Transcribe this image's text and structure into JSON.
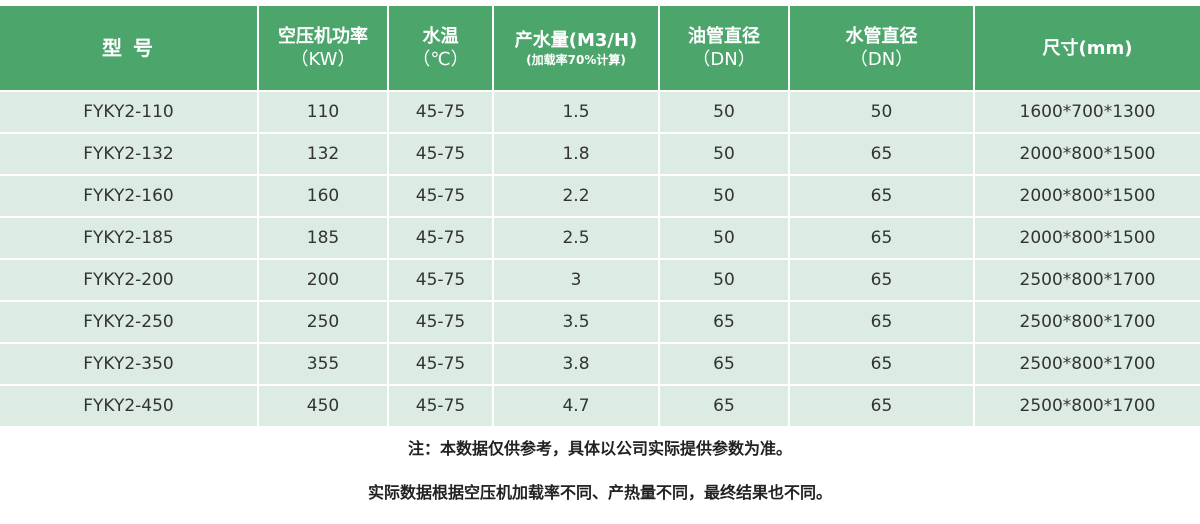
{
  "header": {
    "model": "型 号",
    "power": {
      "title": "空压机功率",
      "unit": "（KW）"
    },
    "water_temp": {
      "title": "水温",
      "unit": "（℃）"
    },
    "output": {
      "title": "产水量(M3/H)",
      "note": "(加载率70%计算)"
    },
    "oil_pipe": {
      "title": "油管直径",
      "unit": "（DN）"
    },
    "water_pipe": {
      "title": "水管直径",
      "unit": "（DN）"
    },
    "size": "尺寸(mm)"
  },
  "rows": [
    [
      "FYKY2-110",
      "110",
      "45-75",
      "1.5",
      "50",
      "50",
      "1600*700*1300"
    ],
    [
      "FYKY2-132",
      "132",
      "45-75",
      "1.8",
      "50",
      "65",
      "2000*800*1500"
    ],
    [
      "FYKY2-160",
      "160",
      "45-75",
      "2.2",
      "50",
      "65",
      "2000*800*1500"
    ],
    [
      "FYKY2-185",
      "185",
      "45-75",
      "2.5",
      "50",
      "65",
      "2000*800*1500"
    ],
    [
      "FYKY2-200",
      "200",
      "45-75",
      "3",
      "50",
      "65",
      "2500*800*1700"
    ],
    [
      "FYKY2-250",
      "250",
      "45-75",
      "3.5",
      "65",
      "65",
      "2500*800*1700"
    ],
    [
      "FYKY2-350",
      "355",
      "45-75",
      "3.8",
      "65",
      "65",
      "2500*800*1700"
    ],
    [
      "FYKY2-450",
      "450",
      "45-75",
      "4.7",
      "65",
      "65",
      "2500*800*1700"
    ]
  ],
  "notes": [
    "注：本数据仅供参考，具体以公司实际提供参数为准。",
    "实际数据根据空压机加载率不同、产热量不同，最终结果也不同。"
  ],
  "colors": {
    "header_bg": "#4ca66c",
    "row_bg": "#dcece2"
  }
}
